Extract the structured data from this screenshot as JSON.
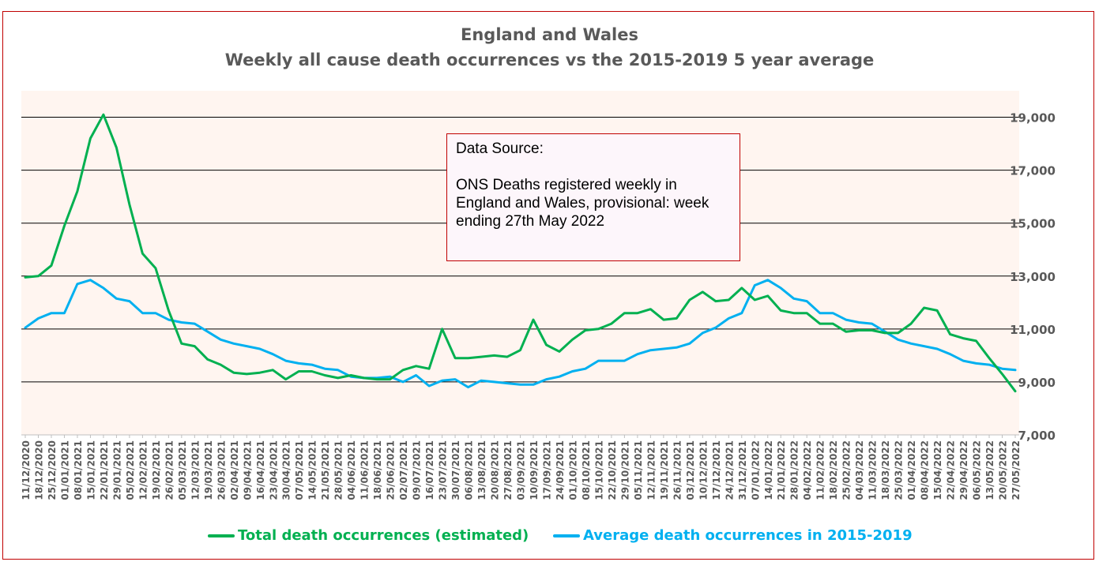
{
  "colors": {
    "frame_border": "#c00000",
    "plot_bg": "#fff5f0",
    "gridline": "#000000",
    "title_text": "#595959",
    "total_series": "#00b050",
    "average_series": "#00b0f0"
  },
  "title": {
    "line1": "England and Wales",
    "line2": "Weekly all cause death occurrences vs the 2015-2019 5 year average"
  },
  "source_box": {
    "line1": "Data Source:",
    "line2": "ONS Deaths registered weekly in England and Wales, provisional: week ending 27th May 2022"
  },
  "legend": {
    "total": "Total death occurrences (estimated)",
    "average": "Average death occurrences in 2015-2019"
  },
  "chart_data": {
    "type": "line",
    "title": "England and Wales Weekly all cause death occurrences vs the 2015-2019 5 year average",
    "xlabel": "",
    "ylabel": "",
    "y_axis_side": "right",
    "ylim": [
      7000,
      20000
    ],
    "yticks": [
      7000,
      9000,
      11000,
      13000,
      15000,
      17000,
      19000
    ],
    "grid": "horizontal",
    "legend_position": "bottom",
    "x": [
      "11/12/2020",
      "18/12/2020",
      "25/12/2020",
      "01/01/2021",
      "08/01/2021",
      "15/01/2021",
      "22/01/2021",
      "29/01/2021",
      "05/02/2021",
      "12/02/2021",
      "19/02/2021",
      "26/02/2021",
      "05/03/2021",
      "12/03/2021",
      "19/03/2021",
      "26/03/2021",
      "02/04/2021",
      "09/04/2021",
      "16/04/2021",
      "23/04/2021",
      "30/04/2021",
      "07/05/2021",
      "14/05/2021",
      "21/05/2021",
      "28/05/2021",
      "04/06/2021",
      "11/06/2021",
      "18/06/2021",
      "25/06/2021",
      "02/07/2021",
      "09/07/2021",
      "16/07/2021",
      "23/07/2021",
      "30/07/2021",
      "06/08/2021",
      "13/08/2021",
      "20/08/2021",
      "27/08/2021",
      "03/09/2021",
      "10/09/2021",
      "17/09/2021",
      "24/09/2021",
      "01/10/2021",
      "08/10/2021",
      "15/10/2021",
      "22/10/2021",
      "29/10/2021",
      "05/11/2021",
      "12/11/2021",
      "19/11/2021",
      "26/11/2021",
      "03/12/2021",
      "10/12/2021",
      "17/12/2021",
      "24/12/2021",
      "31/12/2021",
      "07/01/2022",
      "14/01/2022",
      "21/01/2022",
      "28/01/2022",
      "04/02/2022",
      "11/02/2022",
      "18/02/2022",
      "25/02/2022",
      "04/03/2022",
      "11/03/2022",
      "18/03/2022",
      "25/03/2022",
      "01/04/2022",
      "08/04/2022",
      "15/04/2022",
      "22/04/2022",
      "29/04/2022",
      "06/05/2022",
      "13/05/2022",
      "20/05/2022",
      "27/05/2022"
    ],
    "xtick_labels": [
      "11/12/2020",
      "18/12/2020",
      "25/12/2020",
      "01/01/2021",
      "08/01/2021",
      "15/01/2021",
      "22/01/2021",
      "29/01/2021",
      "05/02/2021",
      "12/02/2021",
      "19/02/2021",
      "26/02/2021",
      "05/03/2021",
      "12/03/2021",
      "19/03/2021",
      "26/03/2021",
      "02/04/2021",
      "09/04/2021",
      "16/04/2021",
      "23/04/2021",
      "30/04/2021",
      "07/05/2021",
      "14/05/2021",
      "21/05/2021",
      "28/05/2021",
      "04/06/2021",
      "11/06/2021",
      "18/06/2021",
      "25/06/2021",
      "02/07/2021",
      "09/07/2021",
      "16/07/2021",
      "23/07/2021",
      "30/07/2021",
      "06/08/2021",
      "13/08/2021",
      "20/08/2021",
      "27/08/2021",
      "03/09/2021",
      "10/09/2021",
      "17/09/2021",
      "24/09/2021",
      "01/10/2021",
      "08/10/2021",
      "15/10/2021",
      "22/10/2021",
      "29/10/2021",
      "05/11/2021",
      "12/11/2021",
      "19/11/2021",
      "26/11/2021",
      "03/12/2021",
      "10/12/2021",
      "17/12/2021",
      "24/12/2021",
      "31/12/2021",
      "07/01/2022",
      "14/01/2022",
      "21/01/2022",
      "28/01/2022",
      "04/02/2022",
      "11/02/2022",
      "18/02/2022",
      "25/02/2022",
      "04/03/2022",
      "11/03/2022",
      "18/03/2022",
      "25/03/2022",
      "01/04/2022",
      "08/04/2022",
      "15/04/2022",
      "22/04/2022",
      "29/04/2022",
      "06/05/2022",
      "13/05/2022",
      "20/05/2022",
      "27/05/2022"
    ],
    "ytick_labels": [
      "7,000",
      "9,000",
      "11,000",
      "13,000",
      "15,000",
      "17,000",
      "19,000"
    ],
    "series": [
      {
        "name": "Total death occurrences (estimated)",
        "color": "#00b050",
        "values": [
          12950,
          13000,
          13400,
          14900,
          16200,
          18200,
          19100,
          17850,
          15700,
          13850,
          13300,
          11700,
          10450,
          10350,
          9850,
          9650,
          9350,
          9300,
          9350,
          9450,
          9100,
          9400,
          9400,
          9250,
          9150,
          9250,
          9150,
          9100,
          9100,
          9450,
          9600,
          9500,
          11000,
          9900,
          9900,
          9950,
          10000,
          9950,
          10200,
          11350,
          10400,
          10150,
          10600,
          10950,
          11000,
          11200,
          11600,
          11600,
          11750,
          11350,
          11400,
          12100,
          12400,
          12050,
          12100,
          12550,
          12100,
          12250,
          11700,
          11600,
          11600,
          11200,
          11200,
          10900,
          10950,
          10950,
          10850,
          10850,
          11200,
          11800,
          11700,
          10800,
          10650,
          10550,
          9900,
          9300,
          8650
        ]
      },
      {
        "name": "Average death occurrences in 2015-2019",
        "color": "#00b0f0",
        "values": [
          11050,
          11400,
          11600,
          11600,
          12700,
          12850,
          12550,
          12150,
          12050,
          11600,
          11600,
          11350,
          11250,
          11200,
          10900,
          10600,
          10450,
          10350,
          10250,
          10050,
          9800,
          9700,
          9650,
          9500,
          9450,
          9200,
          9150,
          9150,
          9200,
          9000,
          9250,
          8850,
          9050,
          9100,
          8800,
          9050,
          9000,
          8950,
          8900,
          8900,
          9100,
          9200,
          9400,
          9500,
          9800,
          9800,
          9800,
          10050,
          10200,
          10250,
          10300,
          10450,
          10850,
          11050,
          11400,
          11600,
          12650,
          12850,
          12550,
          12150,
          12050,
          11600,
          11600,
          11350,
          11250,
          11200,
          10900,
          10600,
          10450,
          10350,
          10250,
          10050,
          9800,
          9700,
          9650,
          9500,
          9450
        ]
      }
    ]
  }
}
